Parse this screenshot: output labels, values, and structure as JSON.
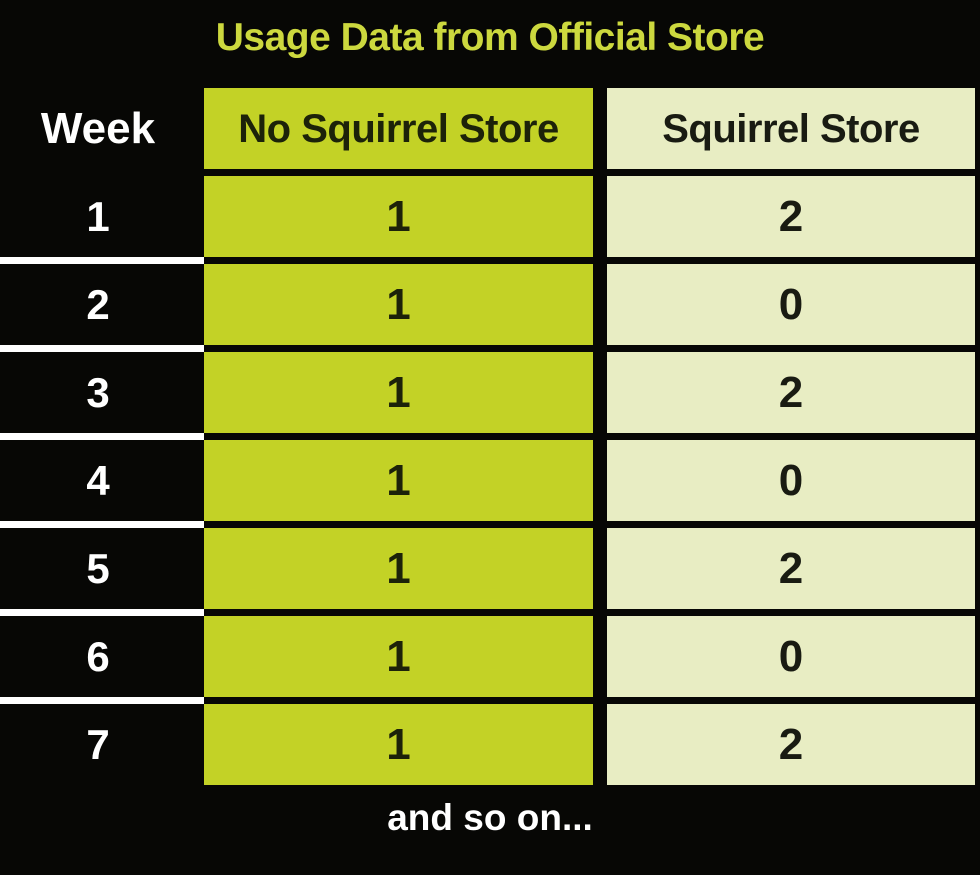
{
  "title": "Usage Data from Official Store",
  "footer_note": "and so on...",
  "table": {
    "headers": {
      "week": "Week",
      "no_squirrel": "No Squirrel Store",
      "squirrel": "Squirrel Store"
    },
    "rows": [
      {
        "week": "1",
        "no_squirrel": "1",
        "squirrel": "2"
      },
      {
        "week": "2",
        "no_squirrel": "1",
        "squirrel": "0"
      },
      {
        "week": "3",
        "no_squirrel": "1",
        "squirrel": "2"
      },
      {
        "week": "4",
        "no_squirrel": "1",
        "squirrel": "0"
      },
      {
        "week": "5",
        "no_squirrel": "1",
        "squirrel": "2"
      },
      {
        "week": "6",
        "no_squirrel": "1",
        "squirrel": "0"
      },
      {
        "week": "7",
        "no_squirrel": "1",
        "squirrel": "2"
      }
    ]
  },
  "colors": {
    "background": "#070705",
    "title_text": "#ccd83e",
    "highlight_column": "#c3d226",
    "pale_column": "#e8edc3",
    "week_text": "#ffffff",
    "cell_text": "#1c2209",
    "divider_line": "#ffffff"
  },
  "chart_data": {
    "type": "table",
    "title": "Usage Data from Official Store",
    "columns": [
      "Week",
      "No Squirrel Store",
      "Squirrel Store"
    ],
    "rows": [
      [
        1,
        1,
        2
      ],
      [
        2,
        1,
        0
      ],
      [
        3,
        1,
        2
      ],
      [
        4,
        1,
        0
      ],
      [
        5,
        1,
        2
      ],
      [
        6,
        1,
        0
      ],
      [
        7,
        1,
        2
      ]
    ],
    "note": "and so on..."
  }
}
